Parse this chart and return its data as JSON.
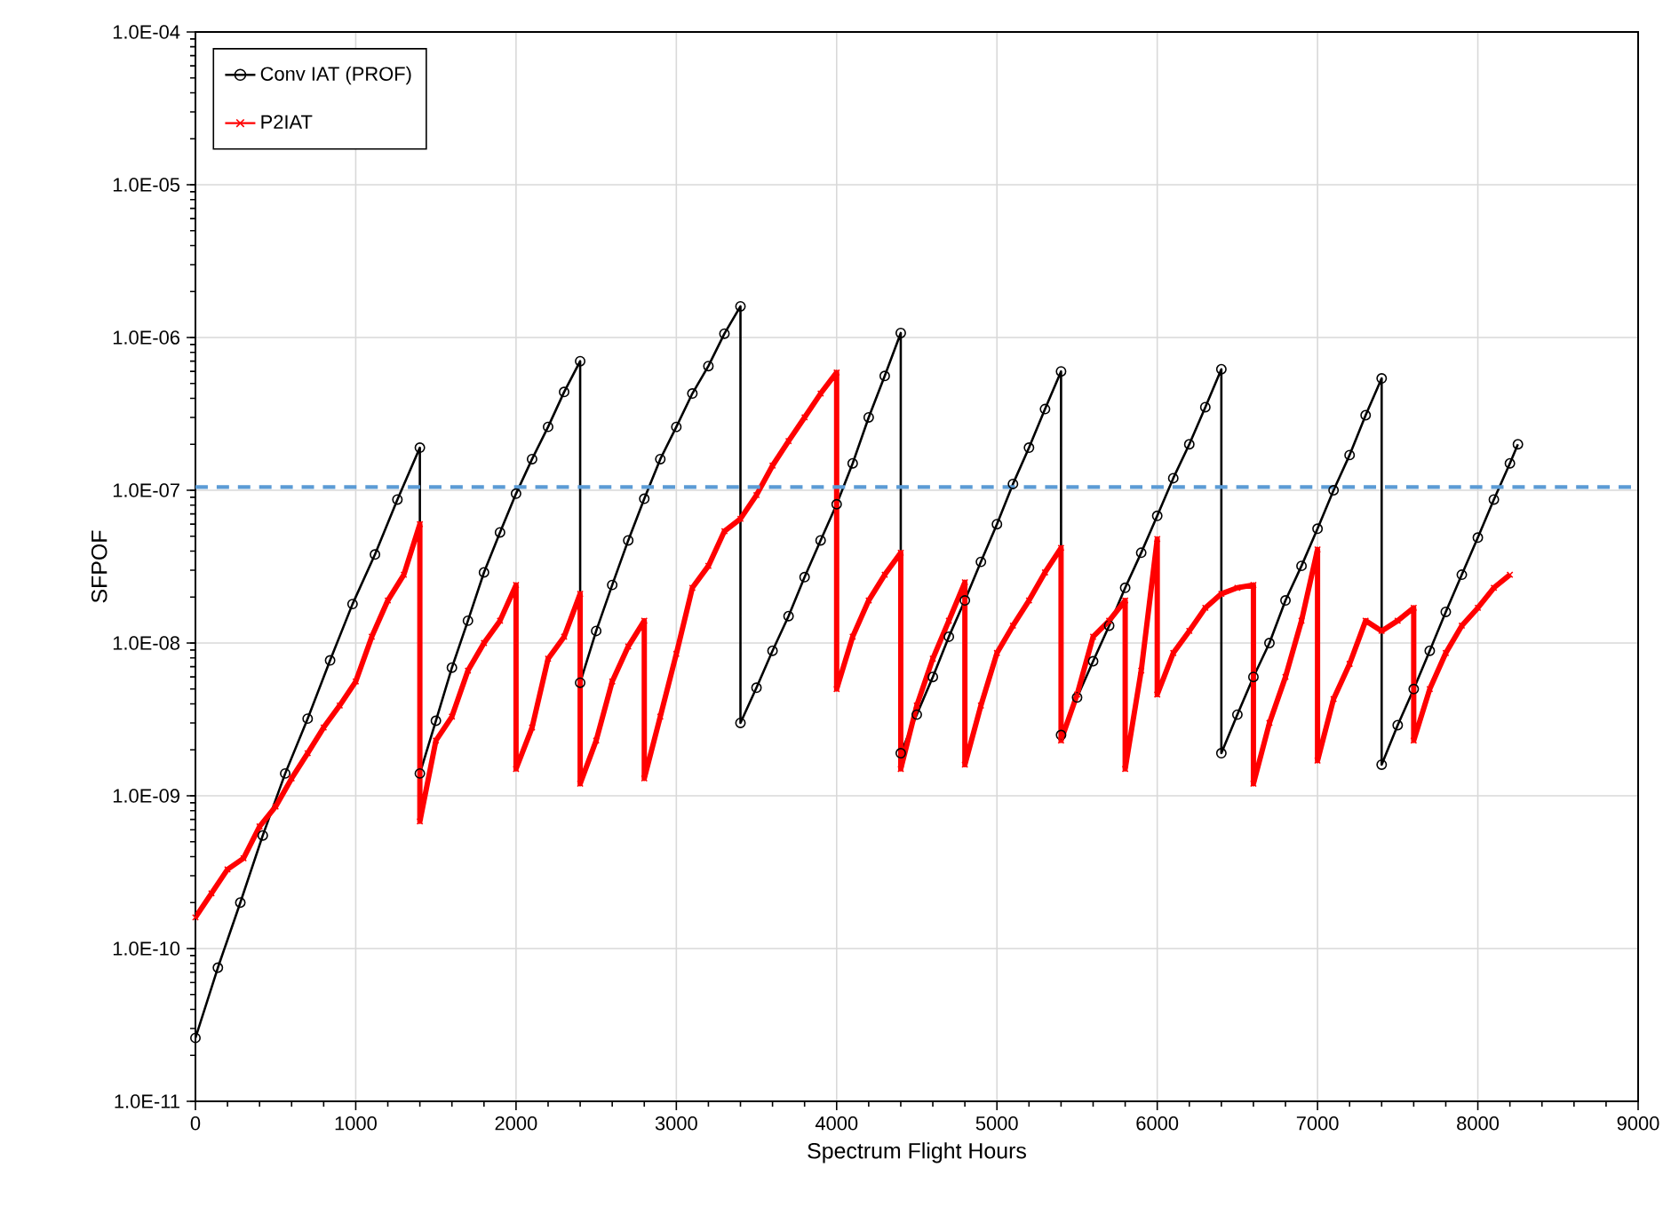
{
  "chart_data": {
    "type": "line",
    "xlabel": "Spectrum Flight Hours",
    "ylabel": "SFPOF",
    "xlim": [
      0,
      9000
    ],
    "ylim": [
      1e-11,
      0.0001
    ],
    "log": "y",
    "grid": true,
    "legend": "top left",
    "xticks": [
      0,
      1000,
      2000,
      3000,
      4000,
      5000,
      6000,
      7000,
      8000,
      9000
    ],
    "yticks": [
      {
        "value": 1e-11,
        "label": "1.0E-11"
      },
      {
        "value": 1e-10,
        "label": "1.0E-10"
      },
      {
        "value": 1e-09,
        "label": "1.0E-09"
      },
      {
        "value": 1e-08,
        "label": "1.0E-08"
      },
      {
        "value": 1e-07,
        "label": "1.0E-07"
      },
      {
        "value": 1e-06,
        "label": "1.0E-06"
      },
      {
        "value": 1e-05,
        "label": "1.0E-05"
      },
      {
        "value": 0.0001,
        "label": "1.0E-04"
      }
    ],
    "ref_lines": [
      {
        "axis": "y",
        "value": 1.05e-07,
        "color": "#5b9bd5",
        "line_style": "dashed"
      }
    ],
    "series": [
      {
        "name": "Conv IAT (PROF)",
        "color": "#000000",
        "marker": "circle",
        "x": [
          0,
          140,
          280,
          420,
          560,
          700,
          840,
          980,
          1120,
          1260,
          1400,
          1400,
          1500,
          1600,
          1700,
          1800,
          1900,
          2000,
          2100,
          2200,
          2300,
          2400,
          2400,
          2500,
          2600,
          2700,
          2800,
          2900,
          3000,
          3100,
          3200,
          3300,
          3400,
          3400,
          3500,
          3600,
          3700,
          3800,
          3900,
          4000,
          4100,
          4200,
          4300,
          4400,
          4400,
          4500,
          4600,
          4700,
          4800,
          4900,
          5000,
          5100,
          5200,
          5300,
          5400,
          5400,
          5500,
          5600,
          5700,
          5800,
          5900,
          6000,
          6100,
          6200,
          6300,
          6400,
          6400,
          6500,
          6600,
          6700,
          6800,
          6900,
          7000,
          7100,
          7200,
          7300,
          7400,
          7400,
          7500,
          7600,
          7700,
          7800,
          7900,
          8000,
          8100,
          8200,
          8250
        ],
        "values": [
          2.6e-11,
          7.5e-11,
          2e-10,
          5.5e-10,
          1.4e-09,
          3.2e-09,
          7.7e-09,
          1.8e-08,
          3.8e-08,
          8.7e-08,
          1.9e-07,
          1.4e-09,
          3.1e-09,
          6.9e-09,
          1.4e-08,
          2.9e-08,
          5.3e-08,
          9.5e-08,
          1.6e-07,
          2.6e-07,
          4.4e-07,
          7e-07,
          5.5e-09,
          1.2e-08,
          2.4e-08,
          4.7e-08,
          8.8e-08,
          1.6e-07,
          2.6e-07,
          4.3e-07,
          6.5e-07,
          1.06e-06,
          1.6e-06,
          3e-09,
          5.1e-09,
          8.9e-09,
          1.5e-08,
          2.7e-08,
          4.7e-08,
          8.1e-08,
          1.5e-07,
          3e-07,
          5.6e-07,
          1.07e-06,
          1.9e-09,
          3.4e-09,
          6e-09,
          1.1e-08,
          1.9e-08,
          3.4e-08,
          6e-08,
          1.1e-07,
          1.9e-07,
          3.4e-07,
          6e-07,
          2.5e-09,
          4.4e-09,
          7.6e-09,
          1.3e-08,
          2.3e-08,
          3.9e-08,
          6.8e-08,
          1.2e-07,
          2e-07,
          3.5e-07,
          6.2e-07,
          1.9e-09,
          3.4e-09,
          6e-09,
          1e-08,
          1.9e-08,
          3.2e-08,
          5.6e-08,
          1e-07,
          1.7e-07,
          3.1e-07,
          5.4e-07,
          1.6e-09,
          2.9e-09,
          5e-09,
          8.9e-09,
          1.6e-08,
          2.8e-08,
          4.9e-08,
          8.7e-08,
          1.5e-07,
          2e-07
        ]
      },
      {
        "name": "P2IAT",
        "color": "#ff0000",
        "marker": "cross",
        "x": [
          0,
          100,
          200,
          300,
          400,
          500,
          600,
          700,
          800,
          900,
          1000,
          1100,
          1200,
          1300,
          1400,
          1400,
          1500,
          1600,
          1700,
          1800,
          1900,
          2000,
          2000,
          2100,
          2200,
          2300,
          2400,
          2400,
          2500,
          2600,
          2700,
          2800,
          2800,
          2900,
          3000,
          3100,
          3200,
          3300,
          3400,
          3500,
          3600,
          3700,
          3800,
          3900,
          4000,
          4000,
          4100,
          4200,
          4300,
          4400,
          4400,
          4500,
          4600,
          4700,
          4800,
          4800,
          4900,
          5000,
          5100,
          5200,
          5300,
          5400,
          5400,
          5500,
          5600,
          5700,
          5800,
          5800,
          5900,
          6000,
          6000,
          6100,
          6200,
          6300,
          6400,
          6500,
          6600,
          6600,
          6700,
          6800,
          6900,
          7000,
          7000,
          7100,
          7200,
          7300,
          7400,
          7500,
          7600,
          7600,
          7700,
          7800,
          7900,
          8000,
          8100,
          8200
        ],
        "values": [
          1.6e-10,
          2.3e-10,
          3.3e-10,
          3.9e-10,
          6.3e-10,
          8.5e-10,
          1.3e-09,
          1.9e-09,
          2.8e-09,
          3.9e-09,
          5.6e-09,
          1.1e-08,
          1.9e-08,
          2.8e-08,
          6e-08,
          6.8e-10,
          2.3e-09,
          3.3e-09,
          6.6e-09,
          1e-08,
          1.4e-08,
          2.4e-08,
          1.5e-09,
          2.8e-09,
          7.9e-09,
          1.1e-08,
          2.1e-08,
          1.2e-09,
          2.3e-09,
          5.6e-09,
          9.5e-09,
          1.4e-08,
          1.3e-09,
          3.3e-09,
          8.5e-09,
          2.3e-08,
          3.2e-08,
          5.4e-08,
          6.5e-08,
          9.3e-08,
          1.45e-07,
          2.1e-07,
          3e-07,
          4.3e-07,
          5.9e-07,
          5e-09,
          1.1e-08,
          1.9e-08,
          2.8e-08,
          3.9e-08,
          1.5e-09,
          3.9e-09,
          7.9e-09,
          1.4e-08,
          2.5e-08,
          1.6e-09,
          3.9e-09,
          8.6e-09,
          1.3e-08,
          1.9e-08,
          2.9e-08,
          4.2e-08,
          2.3e-09,
          4.6e-09,
          1.1e-08,
          1.4e-08,
          1.9e-08,
          1.5e-09,
          6.6e-09,
          4.8e-08,
          4.6e-09,
          8.6e-09,
          1.2e-08,
          1.7e-08,
          2.1e-08,
          2.3e-08,
          2.4e-08,
          1.2e-09,
          3e-09,
          6e-09,
          1.4e-08,
          4.1e-08,
          1.7e-09,
          4.3e-09,
          7.3e-09,
          1.4e-08,
          1.2e-08,
          1.4e-08,
          1.7e-08,
          2.3e-09,
          5e-09,
          8.6e-09,
          1.3e-08,
          1.7e-08,
          2.3e-08,
          2.8e-08
        ]
      }
    ]
  }
}
